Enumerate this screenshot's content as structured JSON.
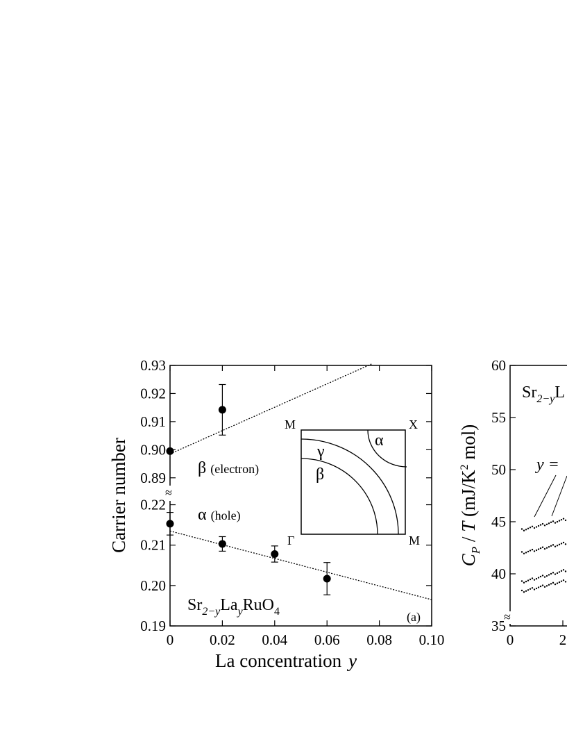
{
  "chart_data": [
    {
      "type": "scatter",
      "panel_label": "(a)",
      "xlabel": "La concentration",
      "xlabel_var": "y",
      "ylabel": "Carrier number",
      "x_ticks": [
        "0",
        "0.02",
        "0.04",
        "0.06",
        "0.08",
        "0.10"
      ],
      "y_ticks_upper": [
        "0.93",
        "0.92",
        "0.91",
        "0.90",
        "0.89"
      ],
      "y_ticks_lower": [
        "0.22",
        "0.21",
        "0.20",
        "0.19"
      ],
      "xlim": [
        0,
        0.1
      ],
      "ylim_upper": [
        0.885,
        0.93
      ],
      "ylim_lower": [
        0.19,
        0.2225
      ],
      "axis_break": "≈",
      "series": [
        {
          "name": "β",
          "label_suffix": "(electron)",
          "points": [
            {
              "x": 0.0,
              "y": 0.8995,
              "err": 0.0
            },
            {
              "x": 0.02,
              "y": 0.9142,
              "err": 0.009
            }
          ],
          "fit_line": [
            [
              0.0,
              0.8985
            ],
            [
              0.077,
              0.9305
            ]
          ]
        },
        {
          "name": "α",
          "label_suffix": "(hole)",
          "points": [
            {
              "x": 0.0,
              "y": 0.2153,
              "err": 0.0028
            },
            {
              "x": 0.02,
              "y": 0.2103,
              "err": 0.0018
            },
            {
              "x": 0.04,
              "y": 0.2078,
              "err": 0.002
            },
            {
              "x": 0.06,
              "y": 0.2017,
              "err": 0.004
            }
          ],
          "fit_line": [
            [
              0.0,
              0.2135
            ],
            [
              0.1,
              0.1965
            ]
          ]
        }
      ],
      "compound": {
        "parts": [
          "Sr",
          "2−y",
          "La",
          "y",
          "RuO",
          "4"
        ]
      },
      "inset": {
        "corners": {
          "top_left": "M",
          "top_right": "X",
          "bottom_left": "Γ",
          "bottom_right": "M"
        },
        "sheets": [
          "γ",
          "β",
          "α"
        ]
      }
    },
    {
      "type": "scatter",
      "ylabel_parts": {
        "c": "C",
        "p": "P",
        "mid": " / ",
        "t": "T",
        "unit_open": "  (mJ/K",
        "sup": "2",
        "unit_close": " mol)"
      },
      "y_ticks": [
        "60",
        "55",
        "50",
        "45",
        "40",
        "35"
      ],
      "ylim": [
        35,
        60
      ],
      "x_ticks": [
        "0",
        "2"
      ],
      "compound_partial": {
        "parts": [
          "Sr",
          "2−y",
          "L"
        ]
      },
      "annotation": "y =",
      "axis_break": "≈"
    }
  ]
}
